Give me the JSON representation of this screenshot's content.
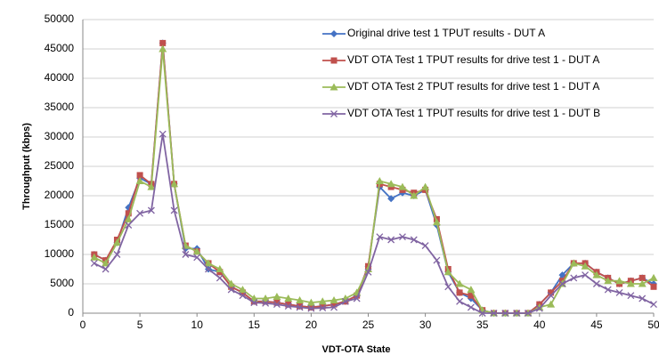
{
  "chart_data": {
    "type": "line",
    "xlabel": "VDT-OTA State",
    "ylabel": "Throughput (kbps)",
    "x": [
      1,
      2,
      3,
      4,
      5,
      6,
      7,
      8,
      9,
      10,
      11,
      12,
      13,
      14,
      15,
      16,
      17,
      18,
      19,
      20,
      21,
      22,
      23,
      24,
      25,
      26,
      27,
      28,
      29,
      30,
      31,
      32,
      33,
      34,
      35,
      36,
      37,
      38,
      39,
      40,
      41,
      42,
      43,
      44,
      45,
      46,
      47,
      48,
      49,
      50
    ],
    "xlim": [
      0,
      50
    ],
    "xticks": [
      0,
      5,
      10,
      15,
      20,
      25,
      30,
      35,
      40,
      45,
      50
    ],
    "ylim": [
      0,
      50000
    ],
    "yticks": [
      0,
      5000,
      10000,
      15000,
      20000,
      25000,
      30000,
      35000,
      40000,
      45000,
      50000
    ],
    "grid": true,
    "legend": "upper right",
    "series": [
      {
        "name": "Original drive test 1 TPUT results - DUT A",
        "color": "#4472c4",
        "marker": "diamond",
        "values": [
          10000,
          9000,
          12000,
          18000,
          23000,
          22000,
          46000,
          22000,
          11000,
          11000,
          7500,
          7000,
          4500,
          3500,
          2000,
          2000,
          1800,
          1500,
          1200,
          1000,
          1200,
          1500,
          2000,
          3000,
          8000,
          21500,
          19500,
          20500,
          20000,
          21000,
          15000,
          7000,
          3500,
          2500,
          500,
          0,
          0,
          0,
          0,
          1500,
          3500,
          6500,
          8500,
          8500,
          7000,
          6000,
          5000,
          5500,
          6000,
          5000
        ]
      },
      {
        "name": "VDT OTA Test 1 TPUT results for drive test 1 - DUT A",
        "color": "#c0504d",
        "marker": "square",
        "values": [
          10000,
          9000,
          12500,
          17000,
          23500,
          22000,
          46000,
          22000,
          11500,
          10500,
          8500,
          7000,
          4500,
          3500,
          2000,
          2000,
          1800,
          1500,
          1200,
          1000,
          1200,
          1500,
          2000,
          3000,
          8000,
          22000,
          21500,
          21000,
          20500,
          21000,
          16000,
          7500,
          3500,
          3000,
          500,
          0,
          0,
          0,
          0,
          1500,
          3500,
          5500,
          8500,
          8500,
          7000,
          6000,
          5000,
          5500,
          6000,
          4500
        ]
      },
      {
        "name": "VDT OTA Test 2 TPUT results for drive test 1 - DUT A",
        "color": "#9bbb59",
        "marker": "triangle",
        "values": [
          9500,
          8500,
          12000,
          16000,
          22500,
          21500,
          45000,
          22000,
          11500,
          10500,
          8500,
          7500,
          5000,
          4000,
          2500,
          2500,
          2800,
          2500,
          2200,
          1800,
          2000,
          2200,
          2500,
          3500,
          7500,
          22500,
          22000,
          21500,
          20000,
          21500,
          15500,
          7000,
          5000,
          4000,
          500,
          0,
          0,
          0,
          0,
          1000,
          1500,
          5000,
          8500,
          8000,
          6500,
          5500,
          5500,
          5000,
          5000,
          6000
        ]
      },
      {
        "name": "VDT OTA Test 1 TPUT results for drive test 1 - DUT B",
        "color": "#8064a2",
        "marker": "x",
        "values": [
          8500,
          7500,
          10000,
          15000,
          17000,
          17500,
          30500,
          17500,
          10000,
          9500,
          7500,
          6000,
          4000,
          3000,
          1800,
          1700,
          1500,
          1200,
          1000,
          800,
          900,
          1000,
          2000,
          2500,
          7000,
          13000,
          12500,
          13000,
          12500,
          11500,
          9000,
          4500,
          2000,
          1000,
          0,
          0,
          0,
          0,
          0,
          800,
          3000,
          5000,
          6000,
          6500,
          5000,
          4000,
          3500,
          3000,
          2500,
          1500
        ]
      }
    ]
  }
}
